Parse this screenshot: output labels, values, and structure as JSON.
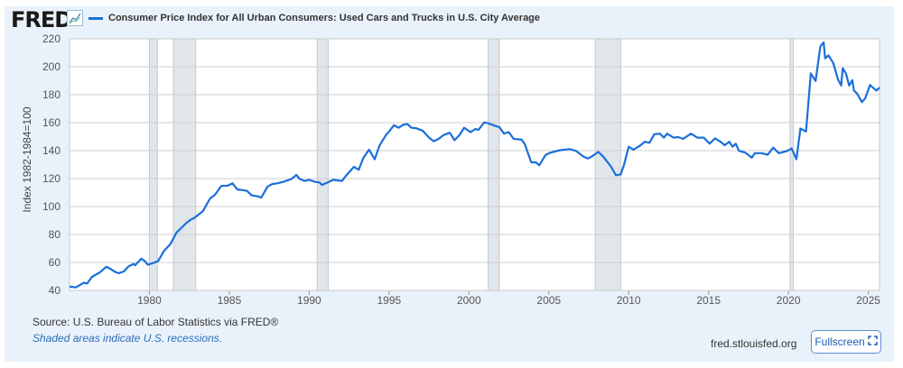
{
  "header": {
    "logo": "FRED",
    "logo_icon": "line-chart-icon"
  },
  "footer": {
    "source": "Source: U.S. Bureau of Labor Statistics via FRED®",
    "note": "Shaded areas indicate U.S. recessions.",
    "site": "fred.stlouisfed.org",
    "fullscreen_label": "Fullscreen",
    "fullscreen_icon": "expand-icon"
  },
  "chart_data": {
    "type": "line",
    "title": "",
    "ylabel": "Index 1982-1984=100",
    "xlabel": "",
    "xlim": [
      1975.0,
      2025.7
    ],
    "ylim": [
      40,
      220
    ],
    "yticks": [
      40,
      60,
      80,
      100,
      120,
      140,
      160,
      180,
      200,
      220
    ],
    "xticks": [
      1980,
      1985,
      1990,
      1995,
      2000,
      2005,
      2010,
      2015,
      2020,
      2025
    ],
    "grid": true,
    "line_color": "#1a6fdb",
    "recession_color": "#e1e6eb",
    "recessions": [
      [
        1980.0,
        1980.5
      ],
      [
        1981.5,
        1982.9
      ],
      [
        1990.5,
        1991.2
      ],
      [
        2001.2,
        2001.9
      ],
      [
        2007.9,
        2009.5
      ],
      [
        2020.1,
        2020.3
      ]
    ],
    "series": [
      {
        "name": "Consumer Price Index for All Urban Consumers: Used Cars and Trucks in U.S. City Average",
        "points": [
          [
            1975.0,
            42.8
          ],
          [
            1975.4,
            42.2
          ],
          [
            1975.9,
            45.5
          ],
          [
            1976.1,
            45
          ],
          [
            1976.4,
            49.7
          ],
          [
            1976.9,
            53
          ],
          [
            1977.3,
            56.9
          ],
          [
            1977.45,
            56.2
          ],
          [
            1977.9,
            53
          ],
          [
            1978.1,
            52.3
          ],
          [
            1978.4,
            53.6
          ],
          [
            1978.7,
            57.3
          ],
          [
            1979.0,
            59
          ],
          [
            1979.1,
            58
          ],
          [
            1979.5,
            62.7
          ],
          [
            1979.7,
            61
          ],
          [
            1979.9,
            58.4
          ],
          [
            1980.3,
            59.9
          ],
          [
            1980.55,
            61
          ],
          [
            1980.9,
            68.1
          ],
          [
            1981.3,
            73
          ],
          [
            1981.7,
            81.4
          ],
          [
            1981.95,
            84.2
          ],
          [
            1982.3,
            88.1
          ],
          [
            1982.6,
            90.7
          ],
          [
            1982.8,
            91.8
          ],
          [
            1983.35,
            96.7
          ],
          [
            1983.8,
            105.8
          ],
          [
            1984.1,
            108.4
          ],
          [
            1984.5,
            114.8
          ],
          [
            1984.9,
            115
          ],
          [
            1985.2,
            116.6
          ],
          [
            1985.5,
            112.2
          ],
          [
            1985.8,
            111.8
          ],
          [
            1986.1,
            111.2
          ],
          [
            1986.4,
            108
          ],
          [
            1986.8,
            107.3
          ],
          [
            1987.0,
            106.4
          ],
          [
            1987.4,
            114.4
          ],
          [
            1987.7,
            116.1
          ],
          [
            1988.0,
            116.6
          ],
          [
            1988.5,
            118.1
          ],
          [
            1988.9,
            119.8
          ],
          [
            1989.2,
            122.6
          ],
          [
            1989.4,
            119.8
          ],
          [
            1989.7,
            118.3
          ],
          [
            1990.0,
            119.1
          ],
          [
            1990.4,
            117.6
          ],
          [
            1990.65,
            117.2
          ],
          [
            1990.8,
            115.5
          ],
          [
            1991.1,
            117
          ],
          [
            1991.5,
            119.1
          ],
          [
            1991.8,
            118.7
          ],
          [
            1992.05,
            118.3
          ],
          [
            1992.3,
            122
          ],
          [
            1992.8,
            128.4
          ],
          [
            1993.1,
            126.3
          ],
          [
            1993.4,
            134.9
          ],
          [
            1993.75,
            140.7
          ],
          [
            1994.1,
            133.8
          ],
          [
            1994.4,
            143.5
          ],
          [
            1994.8,
            151
          ],
          [
            1995.05,
            154.3
          ],
          [
            1995.3,
            158.1
          ],
          [
            1995.6,
            156.4
          ],
          [
            1995.9,
            158.6
          ],
          [
            1996.15,
            159
          ],
          [
            1996.4,
            156.4
          ],
          [
            1996.7,
            156
          ],
          [
            1997.1,
            154.3
          ],
          [
            1997.5,
            149.3
          ],
          [
            1997.8,
            146.7
          ],
          [
            1998.1,
            148.4
          ],
          [
            1998.4,
            151
          ],
          [
            1998.8,
            152.8
          ],
          [
            1999.1,
            147.4
          ],
          [
            1999.4,
            151
          ],
          [
            1999.7,
            156.4
          ],
          [
            2000.1,
            153.2
          ],
          [
            2000.4,
            155.4
          ],
          [
            2000.6,
            154.9
          ],
          [
            2000.95,
            160.1
          ],
          [
            2001.2,
            159.6
          ],
          [
            2001.6,
            157.9
          ],
          [
            2001.9,
            156.9
          ],
          [
            2002.2,
            152.2
          ],
          [
            2002.5,
            153.2
          ],
          [
            2002.8,
            148.4
          ],
          [
            2003.3,
            147.8
          ],
          [
            2003.5,
            144.6
          ],
          [
            2003.9,
            131.6
          ],
          [
            2004.2,
            131.6
          ],
          [
            2004.4,
            129.5
          ],
          [
            2004.8,
            137
          ],
          [
            2005.1,
            138.5
          ],
          [
            2005.7,
            140.3
          ],
          [
            2006.3,
            141.1
          ],
          [
            2006.7,
            139.8
          ],
          [
            2007.2,
            135.5
          ],
          [
            2007.45,
            134.4
          ],
          [
            2007.7,
            135.9
          ],
          [
            2008.1,
            139.1
          ],
          [
            2008.4,
            135.9
          ],
          [
            2008.9,
            128.4
          ],
          [
            2009.2,
            122.4
          ],
          [
            2009.5,
            123
          ],
          [
            2009.7,
            129.5
          ],
          [
            2010.0,
            142.8
          ],
          [
            2010.3,
            140.7
          ],
          [
            2010.75,
            143.9
          ],
          [
            2011.0,
            146.3
          ],
          [
            2011.3,
            145.6
          ],
          [
            2011.6,
            151.7
          ],
          [
            2011.95,
            152.1
          ],
          [
            2012.2,
            149.3
          ],
          [
            2012.4,
            152.1
          ],
          [
            2012.8,
            149.3
          ],
          [
            2013.1,
            149.7
          ],
          [
            2013.4,
            148.4
          ],
          [
            2013.9,
            152.1
          ],
          [
            2014.3,
            149.3
          ],
          [
            2014.7,
            149.3
          ],
          [
            2015.06,
            145
          ],
          [
            2015.4,
            148.8
          ],
          [
            2015.75,
            146.3
          ],
          [
            2016.0,
            143.9
          ],
          [
            2016.3,
            146.3
          ],
          [
            2016.5,
            142.8
          ],
          [
            2016.7,
            145
          ],
          [
            2016.9,
            139.9
          ],
          [
            2017.3,
            138.6
          ],
          [
            2017.7,
            135
          ],
          [
            2017.9,
            138.2
          ],
          [
            2018.3,
            138.2
          ],
          [
            2018.7,
            137.1
          ],
          [
            2019.05,
            142.1
          ],
          [
            2019.4,
            138.2
          ],
          [
            2019.9,
            139.7
          ],
          [
            2020.2,
            141.5
          ],
          [
            2020.5,
            133.9
          ],
          [
            2020.75,
            155.8
          ],
          [
            2021.1,
            153.7
          ],
          [
            2021.4,
            195.2
          ],
          [
            2021.7,
            189.8
          ],
          [
            2022.0,
            214.6
          ],
          [
            2022.2,
            217.4
          ],
          [
            2022.3,
            206
          ],
          [
            2022.5,
            208.1
          ],
          [
            2022.8,
            202.8
          ],
          [
            2023.1,
            190.9
          ],
          [
            2023.3,
            186.6
          ],
          [
            2023.4,
            198.9
          ],
          [
            2023.6,
            195.2
          ],
          [
            2023.8,
            186.6
          ],
          [
            2024.0,
            190.3
          ],
          [
            2024.1,
            183
          ],
          [
            2024.3,
            180.8
          ],
          [
            2024.6,
            174.7
          ],
          [
            2024.8,
            177.3
          ],
          [
            2025.1,
            187
          ],
          [
            2025.5,
            183
          ],
          [
            2025.7,
            185.1
          ]
        ]
      }
    ]
  }
}
